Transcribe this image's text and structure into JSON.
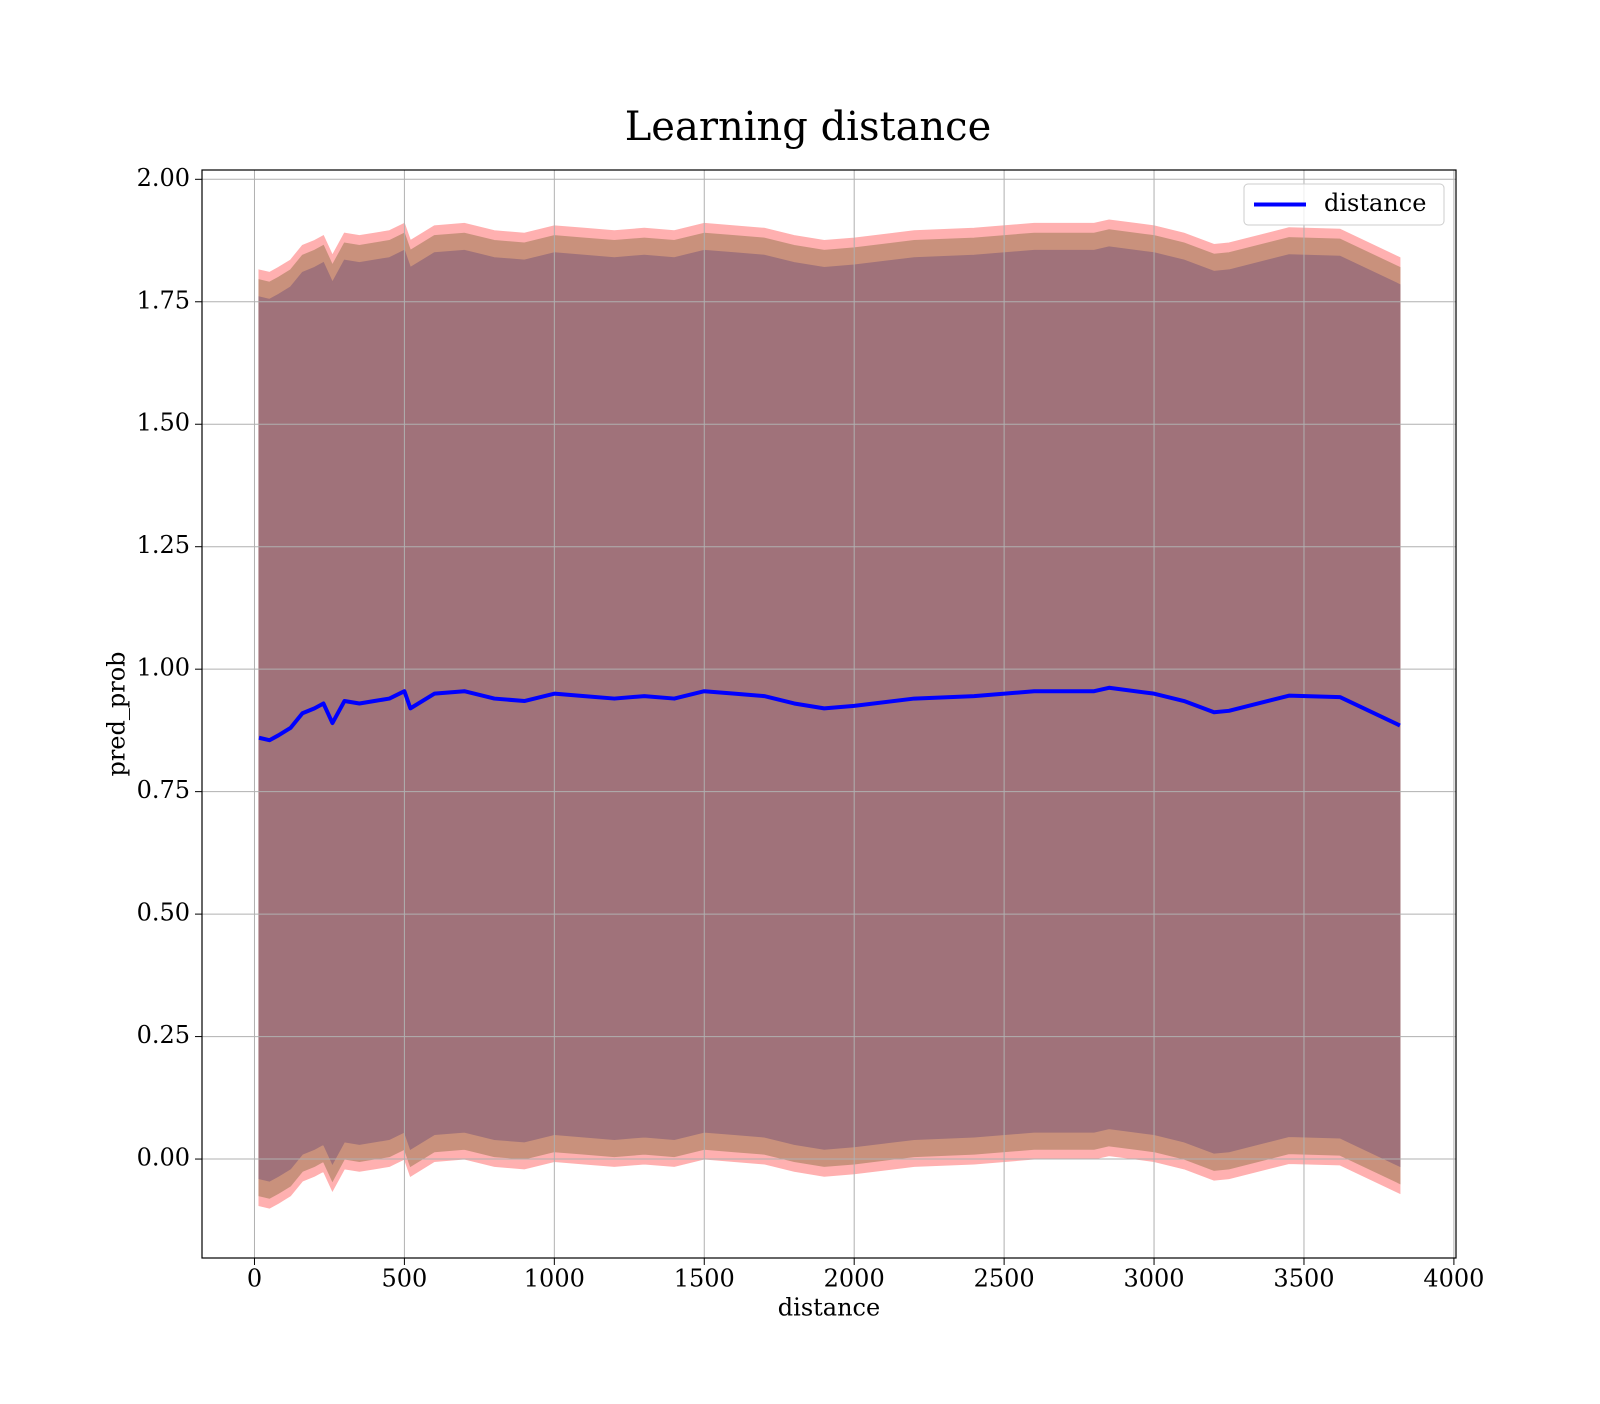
{
  "chart_data": {
    "type": "line",
    "title": "Learning distance",
    "xlabel": "distance",
    "ylabel": "pred_prob",
    "x": [
      15,
      50,
      80,
      120,
      160,
      200,
      230,
      260,
      300,
      350,
      400,
      450,
      500,
      520,
      600,
      700,
      800,
      900,
      1000,
      1100,
      1200,
      1300,
      1400,
      1500,
      1600,
      1700,
      1800,
      1900,
      2000,
      2200,
      2400,
      2600,
      2800,
      2850,
      3000,
      3100,
      3200,
      3250,
      3450,
      3620,
      3820
    ],
    "series": [
      {
        "name": "distance",
        "color": "#0000ff",
        "values": [
          0.86,
          0.855,
          0.865,
          0.88,
          0.91,
          0.92,
          0.93,
          0.89,
          0.935,
          0.93,
          0.935,
          0.94,
          0.955,
          0.92,
          0.95,
          0.955,
          0.94,
          0.935,
          0.95,
          0.945,
          0.94,
          0.945,
          0.94,
          0.955,
          0.95,
          0.945,
          0.93,
          0.92,
          0.925,
          0.94,
          0.945,
          0.955,
          0.955,
          0.962,
          0.95,
          0.935,
          0.912,
          0.915,
          0.946,
          0.943,
          0.885
        ]
      }
    ],
    "bands": [
      {
        "color": "#ffb0b0",
        "upper": [
          1.815,
          1.81,
          1.82,
          1.835,
          1.865,
          1.875,
          1.885,
          1.845,
          1.89,
          1.885,
          1.89,
          1.895,
          1.91,
          1.875,
          1.905,
          1.91,
          1.895,
          1.89,
          1.905,
          1.9,
          1.895,
          1.9,
          1.895,
          1.91,
          1.905,
          1.9,
          1.885,
          1.875,
          1.88,
          1.895,
          1.9,
          1.91,
          1.91,
          1.917,
          1.905,
          1.89,
          1.867,
          1.87,
          1.901,
          1.898,
          1.84
        ],
        "lower": [
          -0.095,
          -0.1,
          -0.09,
          -0.075,
          -0.045,
          -0.035,
          -0.025,
          -0.065,
          -0.02,
          -0.025,
          -0.02,
          -0.015,
          0,
          -0.035,
          -0.005,
          0,
          -0.015,
          -0.02,
          -0.005,
          -0.01,
          -0.015,
          -0.01,
          -0.015,
          0,
          -0.005,
          -0.01,
          -0.025,
          -0.035,
          -0.03,
          -0.015,
          -0.01,
          0,
          0,
          0.007,
          -0.005,
          -0.02,
          -0.043,
          -0.04,
          -0.009,
          -0.012,
          -0.07
        ]
      },
      {
        "color": "#c9917c",
        "upper": [
          1.795,
          1.79,
          1.8,
          1.815,
          1.845,
          1.855,
          1.865,
          1.825,
          1.87,
          1.865,
          1.87,
          1.875,
          1.89,
          1.855,
          1.885,
          1.89,
          1.875,
          1.87,
          1.885,
          1.88,
          1.875,
          1.88,
          1.875,
          1.89,
          1.885,
          1.88,
          1.865,
          1.855,
          1.86,
          1.875,
          1.88,
          1.89,
          1.89,
          1.897,
          1.885,
          1.87,
          1.847,
          1.85,
          1.881,
          1.878,
          1.82
        ],
        "lower": [
          -0.075,
          -0.08,
          -0.07,
          -0.055,
          -0.025,
          -0.015,
          -0.005,
          -0.045,
          0,
          -0.005,
          0,
          0.005,
          0.02,
          -0.015,
          0.015,
          0.02,
          0.005,
          0,
          0.015,
          0.01,
          0.005,
          0.01,
          0.005,
          0.02,
          0.015,
          0.01,
          -0.005,
          -0.015,
          -0.01,
          0.005,
          0.01,
          0.02,
          0.02,
          0.027,
          0.015,
          0,
          -0.023,
          -0.02,
          0.011,
          0.008,
          -0.05
        ]
      },
      {
        "color": "#a0727a",
        "upper": [
          1.76,
          1.755,
          1.765,
          1.78,
          1.81,
          1.82,
          1.83,
          1.79,
          1.835,
          1.83,
          1.835,
          1.84,
          1.855,
          1.82,
          1.85,
          1.855,
          1.84,
          1.835,
          1.85,
          1.845,
          1.84,
          1.845,
          1.84,
          1.855,
          1.85,
          1.845,
          1.83,
          1.82,
          1.825,
          1.84,
          1.845,
          1.855,
          1.855,
          1.862,
          1.85,
          1.835,
          1.812,
          1.815,
          1.846,
          1.843,
          1.785
        ],
        "lower": [
          -0.04,
          -0.045,
          -0.035,
          -0.02,
          0.01,
          0.02,
          0.03,
          -0.01,
          0.035,
          0.03,
          0.035,
          0.04,
          0.055,
          0.02,
          0.05,
          0.055,
          0.04,
          0.035,
          0.05,
          0.045,
          0.04,
          0.045,
          0.04,
          0.055,
          0.05,
          0.045,
          0.03,
          0.02,
          0.025,
          0.04,
          0.045,
          0.055,
          0.055,
          0.062,
          0.05,
          0.035,
          0.012,
          0.015,
          0.046,
          0.043,
          -0.015
        ]
      }
    ],
    "xlim": [
      -175,
      4007
    ],
    "xticks": [
      0,
      500,
      1000,
      1500,
      2000,
      2500,
      3000,
      3500,
      4000
    ],
    "ylim": [
      -0.202,
      2.019
    ],
    "yticks": [
      {
        "value": 0,
        "label": "0.00"
      },
      {
        "value": 0.25,
        "label": "0.25"
      },
      {
        "value": 0.5,
        "label": "0.50"
      },
      {
        "value": 0.75,
        "label": "0.75"
      },
      {
        "value": 1,
        "label": "1.00"
      },
      {
        "value": 1.25,
        "label": "1.25"
      },
      {
        "value": 1.5,
        "label": "1.50"
      },
      {
        "value": 1.75,
        "label": "1.75"
      },
      {
        "value": 2,
        "label": "2.00"
      }
    ],
    "grid": true,
    "legend": "upper right"
  }
}
